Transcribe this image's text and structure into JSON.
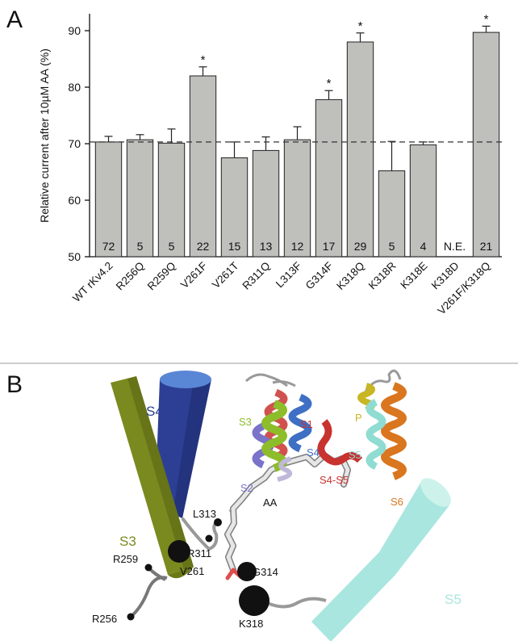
{
  "panel_a_label": "A",
  "panel_b_label": "B",
  "chart_data": {
    "type": "bar",
    "ylabel": "Relative current after 10µM AA (%)",
    "xlabel": "",
    "ylim": [
      50,
      93
    ],
    "yticks": [
      50,
      60,
      70,
      80,
      90
    ],
    "reference_line": 70.3,
    "categories": [
      "WT rKv4.2",
      "R256Q",
      "R259Q",
      "V261F",
      "V261T",
      "R311Q",
      "L313F",
      "G314F",
      "K318Q",
      "K318R",
      "K318E",
      "K318D",
      "V261F/K318Q"
    ],
    "values": [
      70.3,
      70.7,
      70.1,
      82.0,
      67.5,
      68.8,
      70.7,
      77.8,
      88.0,
      65.2,
      69.8,
      null,
      89.7
    ],
    "errors": [
      1.0,
      0.9,
      2.5,
      1.6,
      2.8,
      2.4,
      2.3,
      1.6,
      1.6,
      5.2,
      0.5,
      null,
      1.1
    ],
    "n": [
      "72",
      "5",
      "5",
      "22",
      "15",
      "13",
      "12",
      "17",
      "29",
      "5",
      "4",
      "N.E.",
      "21"
    ],
    "significant": [
      false,
      false,
      false,
      true,
      false,
      false,
      false,
      true,
      true,
      false,
      false,
      false,
      true
    ],
    "significance_marker": "*",
    "bar_color": "#bfc0bc"
  },
  "structure": {
    "segments": {
      "S1": {
        "label": "S1",
        "color": "#c8322f"
      },
      "S2": {
        "label": "S2",
        "color": "#7a73c9"
      },
      "S3": {
        "label": "S3",
        "color": "#8dbd2a"
      },
      "S4": {
        "label": "S4",
        "color": "#3e6fc4"
      },
      "S5": {
        "label": "S5",
        "color": "#8fdcd2"
      },
      "S6": {
        "label": "S6",
        "color": "#d9761f"
      },
      "P": {
        "label": "P",
        "color": "#c8b624"
      },
      "S4S5": {
        "label": "S4-S5",
        "color": "#c8322f"
      }
    },
    "zoom": {
      "S3": {
        "label": "S3",
        "color": "#7a8a1f"
      },
      "S4": {
        "label": "S4",
        "color": "#2c3f94"
      },
      "S5": {
        "label": "S5",
        "color": "#a9e6df"
      },
      "AA": "AA"
    },
    "residues": [
      "R256",
      "R259",
      "V261",
      "R311",
      "L313",
      "G314",
      "K318"
    ]
  }
}
